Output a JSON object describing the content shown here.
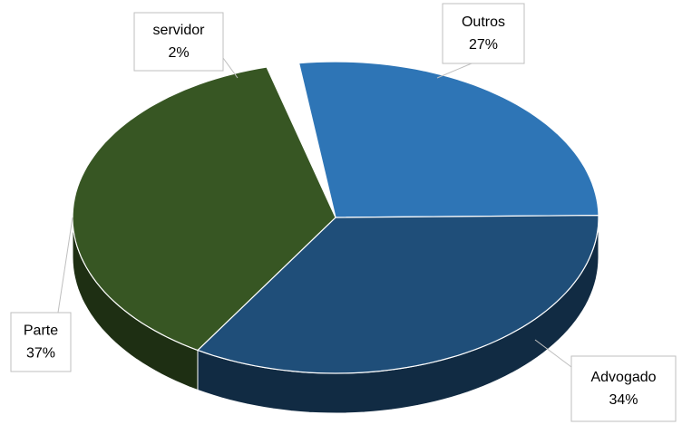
{
  "chart_data": {
    "type": "pie",
    "categories": [
      "Outros",
      "Advogado",
      "Parte",
      "servidor"
    ],
    "values": [
      27,
      34,
      37,
      2
    ],
    "value_labels": [
      "27%",
      "34%",
      "37%",
      "2%"
    ],
    "colors": [
      "#2e75b6",
      "#1f4e79",
      "#375623",
      "#ffffff"
    ],
    "exploded": "servidor"
  }
}
